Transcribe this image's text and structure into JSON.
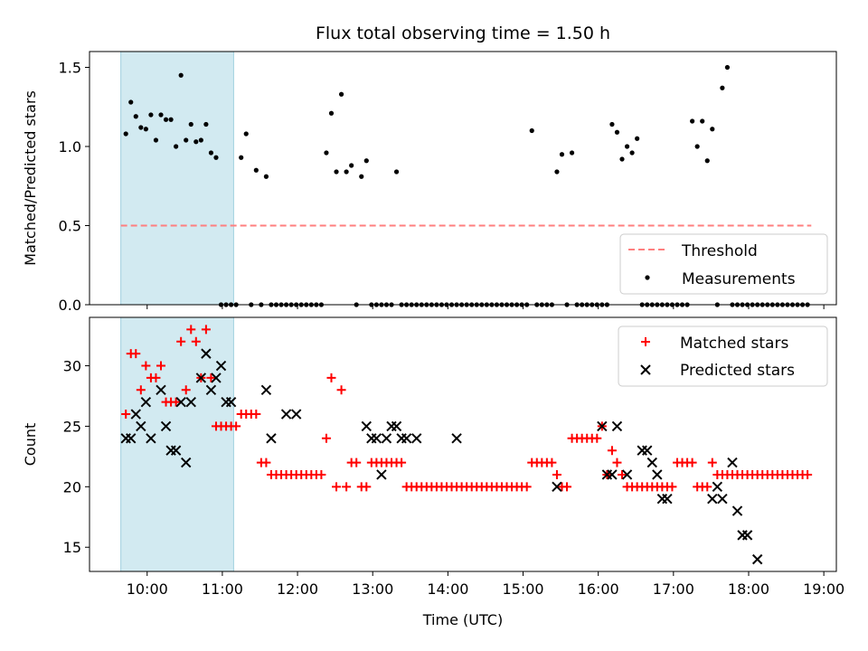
{
  "chart_data": [
    {
      "type": "scatter",
      "title": "Flux total observing time = 1.50 h",
      "xlabel": "",
      "ylabel": "Matched/Predicted stars",
      "xlim": [
        "09:14",
        "19:10"
      ],
      "ylim": [
        0,
        1.6
      ],
      "yticks": [
        "0.0",
        "0.5",
        "1.0",
        "1.5"
      ],
      "shaded_span": [
        "09:39",
        "11:09"
      ],
      "threshold": {
        "name": "Threshold",
        "value": 0.5,
        "x_range": [
          "09:39",
          "18:50"
        ],
        "color": "#ff7f7f"
      },
      "legend": {
        "position": "lower-right",
        "entries": [
          "Threshold",
          "Measurements"
        ]
      },
      "series": [
        {
          "name": "Measurements",
          "color": "#000000",
          "x": [
            "09:43",
            "09:47",
            "09:51",
            "09:55",
            "09:59",
            "10:03",
            "10:07",
            "10:11",
            "10:15",
            "10:19",
            "10:23",
            "10:27",
            "10:31",
            "10:35",
            "10:39",
            "10:43",
            "10:47",
            "10:51",
            "10:55",
            "10:59",
            "11:03",
            "11:07",
            "11:11",
            "11:15",
            "11:19",
            "11:23",
            "11:27",
            "11:31",
            "11:35",
            "11:39",
            "11:43",
            "11:47",
            "11:51",
            "11:55",
            "11:59",
            "12:03",
            "12:07",
            "12:11",
            "12:15",
            "12:19",
            "12:23",
            "12:27",
            "12:31",
            "12:35",
            "12:39",
            "12:43",
            "12:47",
            "12:51",
            "12:55",
            "12:59",
            "13:03",
            "13:07",
            "13:11",
            "13:15",
            "13:19",
            "13:23",
            "13:27",
            "13:31",
            "13:35",
            "13:39",
            "13:43",
            "13:47",
            "13:51",
            "13:55",
            "13:59",
            "14:03",
            "14:07",
            "14:11",
            "14:15",
            "14:19",
            "14:23",
            "14:27",
            "14:31",
            "14:35",
            "14:39",
            "14:43",
            "14:47",
            "14:51",
            "14:55",
            "14:59",
            "15:03",
            "15:07",
            "15:11",
            "15:15",
            "15:19",
            "15:23",
            "15:27",
            "15:31",
            "15:35",
            "15:39",
            "15:43",
            "15:47",
            "15:51",
            "15:55",
            "15:59",
            "16:03",
            "16:07",
            "16:11",
            "16:15",
            "16:19",
            "16:23",
            "16:27",
            "16:31",
            "16:35",
            "16:39",
            "16:43",
            "16:47",
            "16:51",
            "16:55",
            "16:59",
            "17:03",
            "17:07",
            "17:11",
            "17:15",
            "17:19",
            "17:23",
            "17:27",
            "17:31",
            "17:35",
            "17:39",
            "17:43",
            "17:47",
            "17:51",
            "17:55",
            "17:59",
            "18:03",
            "18:07",
            "18:11",
            "18:15",
            "18:19",
            "18:23",
            "18:27",
            "18:31",
            "18:35",
            "18:39",
            "18:43",
            "18:47"
          ],
          "y": [
            1.08,
            1.28,
            1.19,
            1.12,
            1.11,
            1.2,
            1.04,
            1.2,
            1.17,
            1.17,
            1.0,
            1.45,
            1.04,
            1.14,
            1.03,
            1.04,
            1.14,
            0.96,
            0.93,
            0,
            0,
            0,
            0,
            0.93,
            1.08,
            0,
            0.85,
            0,
            0.81,
            0,
            0,
            0,
            0,
            0,
            0,
            0,
            0,
            0,
            0,
            0,
            0.96,
            1.21,
            0.84,
            1.33,
            0.84,
            0.88,
            0,
            0.81,
            0.91,
            0,
            0,
            0,
            0,
            0,
            0.84,
            0,
            0,
            0,
            0,
            0,
            0,
            0,
            0,
            0,
            0,
            0,
            0,
            0,
            0,
            0,
            0,
            0,
            0,
            0,
            0,
            0,
            0,
            0,
            0,
            0,
            0,
            1.1,
            0,
            0,
            0,
            0,
            0.84,
            0.95,
            0,
            0.96,
            0,
            0,
            0,
            0,
            0,
            0,
            0,
            1.14,
            1.09,
            0.92,
            1.0,
            0.96,
            1.05,
            0,
            0,
            0,
            0,
            0,
            0,
            0,
            0,
            0,
            0,
            1.16,
            1.0,
            1.16,
            0.91,
            1.11,
            0,
            1.37,
            1.5,
            0,
            0,
            0,
            0,
            0,
            0,
            0,
            0,
            0,
            0,
            0,
            0,
            0,
            0,
            0,
            0
          ]
        }
      ]
    },
    {
      "type": "scatter",
      "title": "",
      "xlabel": "Time (UTC)",
      "ylabel": "Count",
      "xlim": [
        "09:14",
        "19:10"
      ],
      "ylim": [
        13,
        34
      ],
      "xticks": [
        "10:00",
        "11:00",
        "12:00",
        "13:00",
        "14:00",
        "15:00",
        "16:00",
        "17:00",
        "18:00",
        "19:00"
      ],
      "yticks": [
        "15",
        "20",
        "25",
        "30"
      ],
      "shaded_span": [
        "09:39",
        "11:09"
      ],
      "legend": {
        "position": "top-right",
        "entries": [
          "Matched stars",
          "Predicted stars"
        ]
      },
      "series": [
        {
          "name": "Matched stars",
          "marker": "plus",
          "color": "#ff0000",
          "x": [
            "09:43",
            "09:47",
            "09:51",
            "09:55",
            "09:59",
            "10:03",
            "10:07",
            "10:11",
            "10:15",
            "10:19",
            "10:23",
            "10:27",
            "10:31",
            "10:35",
            "10:39",
            "10:43",
            "10:47",
            "10:51",
            "10:55",
            "10:59",
            "11:03",
            "11:07",
            "11:11",
            "11:15",
            "11:19",
            "11:23",
            "11:27",
            "11:31",
            "11:35",
            "11:39",
            "11:43",
            "11:47",
            "11:51",
            "11:55",
            "11:59",
            "12:03",
            "12:07",
            "12:11",
            "12:15",
            "12:19",
            "12:23",
            "12:27",
            "12:31",
            "12:35",
            "12:39",
            "12:43",
            "12:47",
            "12:51",
            "12:55",
            "12:59",
            "13:03",
            "13:07",
            "13:11",
            "13:15",
            "13:19",
            "13:23",
            "13:27",
            "13:31",
            "13:35",
            "13:39",
            "13:43",
            "13:47",
            "13:51",
            "13:55",
            "13:59",
            "14:03",
            "14:07",
            "14:11",
            "14:15",
            "14:19",
            "14:23",
            "14:27",
            "14:31",
            "14:35",
            "14:39",
            "14:43",
            "14:47",
            "14:51",
            "14:55",
            "14:59",
            "15:03",
            "15:07",
            "15:11",
            "15:15",
            "15:19",
            "15:23",
            "15:27",
            "15:31",
            "15:35",
            "15:39",
            "15:43",
            "15:47",
            "15:51",
            "15:55",
            "15:59",
            "16:03",
            "16:07",
            "16:11",
            "16:15",
            "16:19",
            "16:23",
            "16:27",
            "16:31",
            "16:35",
            "16:39",
            "16:43",
            "16:47",
            "16:51",
            "16:55",
            "16:59",
            "17:03",
            "17:07",
            "17:11",
            "17:15",
            "17:19",
            "17:23",
            "17:27",
            "17:31",
            "17:35",
            "17:39",
            "17:43",
            "17:47",
            "17:51",
            "17:55",
            "17:59",
            "18:03",
            "18:07",
            "18:11",
            "18:15",
            "18:19",
            "18:23",
            "18:27",
            "18:31",
            "18:35",
            "18:39",
            "18:43",
            "18:47"
          ],
          "y": [
            26,
            31,
            31,
            28,
            30,
            29,
            29,
            30,
            27,
            27,
            27,
            32,
            28,
            33,
            32,
            29,
            33,
            29,
            25,
            25,
            25,
            25,
            25,
            26,
            26,
            26,
            26,
            22,
            22,
            21,
            21,
            21,
            21,
            21,
            21,
            21,
            21,
            21,
            21,
            21,
            24,
            29,
            20,
            28,
            20,
            22,
            22,
            20,
            20,
            22,
            22,
            22,
            22,
            22,
            22,
            22,
            20,
            20,
            20,
            20,
            20,
            20,
            20,
            20,
            20,
            20,
            20,
            20,
            20,
            20,
            20,
            20,
            20,
            20,
            20,
            20,
            20,
            20,
            20,
            20,
            20,
            22,
            22,
            22,
            22,
            22,
            21,
            20,
            20,
            24,
            24,
            24,
            24,
            24,
            24,
            25,
            21,
            23,
            22,
            21,
            20,
            20,
            20,
            20,
            20,
            20,
            20,
            20,
            20,
            20,
            22,
            22,
            22,
            22,
            20,
            20,
            20,
            22,
            21,
            21,
            21,
            21,
            21,
            21,
            21,
            21,
            21,
            21,
            21,
            21,
            21,
            21,
            21,
            21,
            21,
            21,
            21
          ]
        },
        {
          "name": "Predicted stars",
          "marker": "x",
          "color": "#000000",
          "x": [
            "09:43",
            "09:47",
            "09:51",
            "09:55",
            "09:59",
            "10:03",
            "10:11",
            "10:15",
            "10:19",
            "10:23",
            "10:27",
            "10:31",
            "10:35",
            "10:43",
            "10:47",
            "10:51",
            "10:55",
            "10:59",
            "11:03",
            "11:07",
            "11:35",
            "11:39",
            "11:51",
            "11:59",
            "12:55",
            "12:59",
            "13:03",
            "13:07",
            "13:11",
            "13:15",
            "13:19",
            "13:23",
            "13:27",
            "13:35",
            "14:07",
            "15:27",
            "16:03",
            "16:07",
            "16:11",
            "16:15",
            "16:23",
            "16:35",
            "16:39",
            "16:43",
            "16:47",
            "16:51",
            "16:55",
            "17:31",
            "17:35",
            "17:39",
            "17:47",
            "17:51",
            "17:55",
            "17:59",
            "18:07"
          ],
          "y": [
            24,
            24,
            26,
            25,
            27,
            24,
            28,
            25,
            23,
            23,
            27,
            22,
            27,
            29,
            31,
            28,
            29,
            30,
            27,
            27,
            28,
            24,
            26,
            26,
            25,
            24,
            24,
            21,
            24,
            25,
            25,
            24,
            24,
            24,
            24,
            20,
            25,
            21,
            21,
            25,
            21,
            23,
            23,
            22,
            21,
            19,
            19,
            19,
            20,
            19,
            22,
            18,
            16,
            16,
            14
          ]
        }
      ]
    }
  ]
}
